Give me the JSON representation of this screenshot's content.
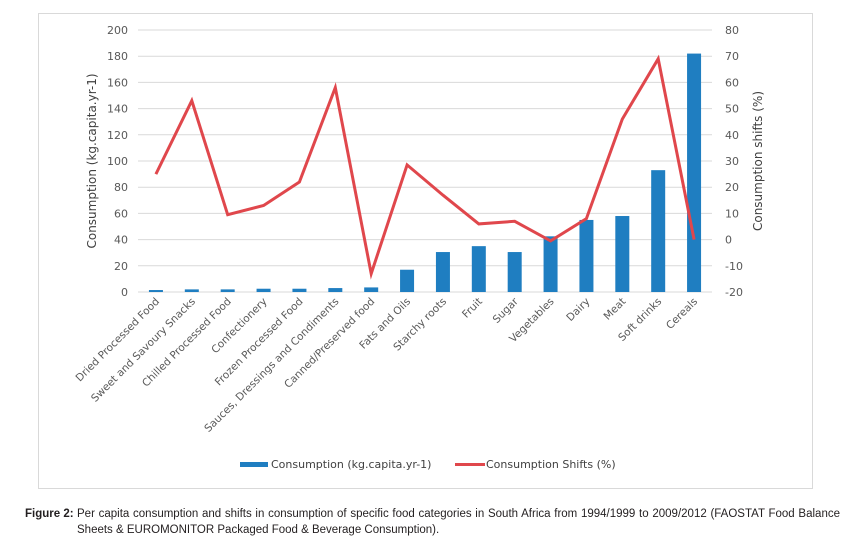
{
  "chart_data": {
    "type": "bar",
    "title": "",
    "categories": [
      "Dried Processed Food",
      "Sweet and Savoury Snacks",
      "Chilled Processed Food",
      "Confectionery",
      "Frozen Processed Food",
      "Sauces, Dressings and Condiments",
      "Canned/Preserved food",
      "Fats and Oils",
      "Starchy roots",
      "Fruit",
      "Sugar",
      "Vegetables",
      "Dairy",
      "Meat",
      "Soft drinks",
      "Cereals"
    ],
    "series": [
      {
        "name": "Consumption (kg.capita.yr-1)",
        "type": "bar",
        "axis": "left",
        "color": "#1f7ec1",
        "values": [
          1.5,
          2,
          2,
          2.5,
          2.5,
          3,
          3.5,
          17,
          30.5,
          35,
          30.5,
          42.5,
          55,
          58,
          93,
          182
        ]
      },
      {
        "name": "Consumption Shifts (%)",
        "type": "line",
        "axis": "right",
        "color": "#e0474c",
        "values": [
          25,
          53,
          9.5,
          13,
          22,
          58,
          -13,
          28.5,
          17,
          6,
          7,
          -0.5,
          8,
          46,
          69,
          0
        ]
      }
    ],
    "ylabel": "Consumption (kg.capita.yr-1)",
    "y2label": "Consumption shifts (%)",
    "xlabel": "",
    "ylim": [
      0,
      200
    ],
    "y2lim": [
      -20,
      80
    ],
    "yticks": [
      "0",
      "20",
      "40",
      "60",
      "80",
      "100",
      "120",
      "140",
      "160",
      "180",
      "200"
    ],
    "y2ticks": [
      "-20",
      "-10",
      "0",
      "10",
      "20",
      "30",
      "40",
      "50",
      "60",
      "70",
      "80"
    ],
    "grid": true,
    "legend_position": "bottom"
  },
  "caption": {
    "label": "Figure 2:",
    "text": "Per capita consumption and shifts in consumption of specific food categories in South Africa from 1994/1999 to 2009/2012 (FAOSTAT Food Balance Sheets & EUROMONITOR Packaged Food & Beverage Consumption)."
  }
}
